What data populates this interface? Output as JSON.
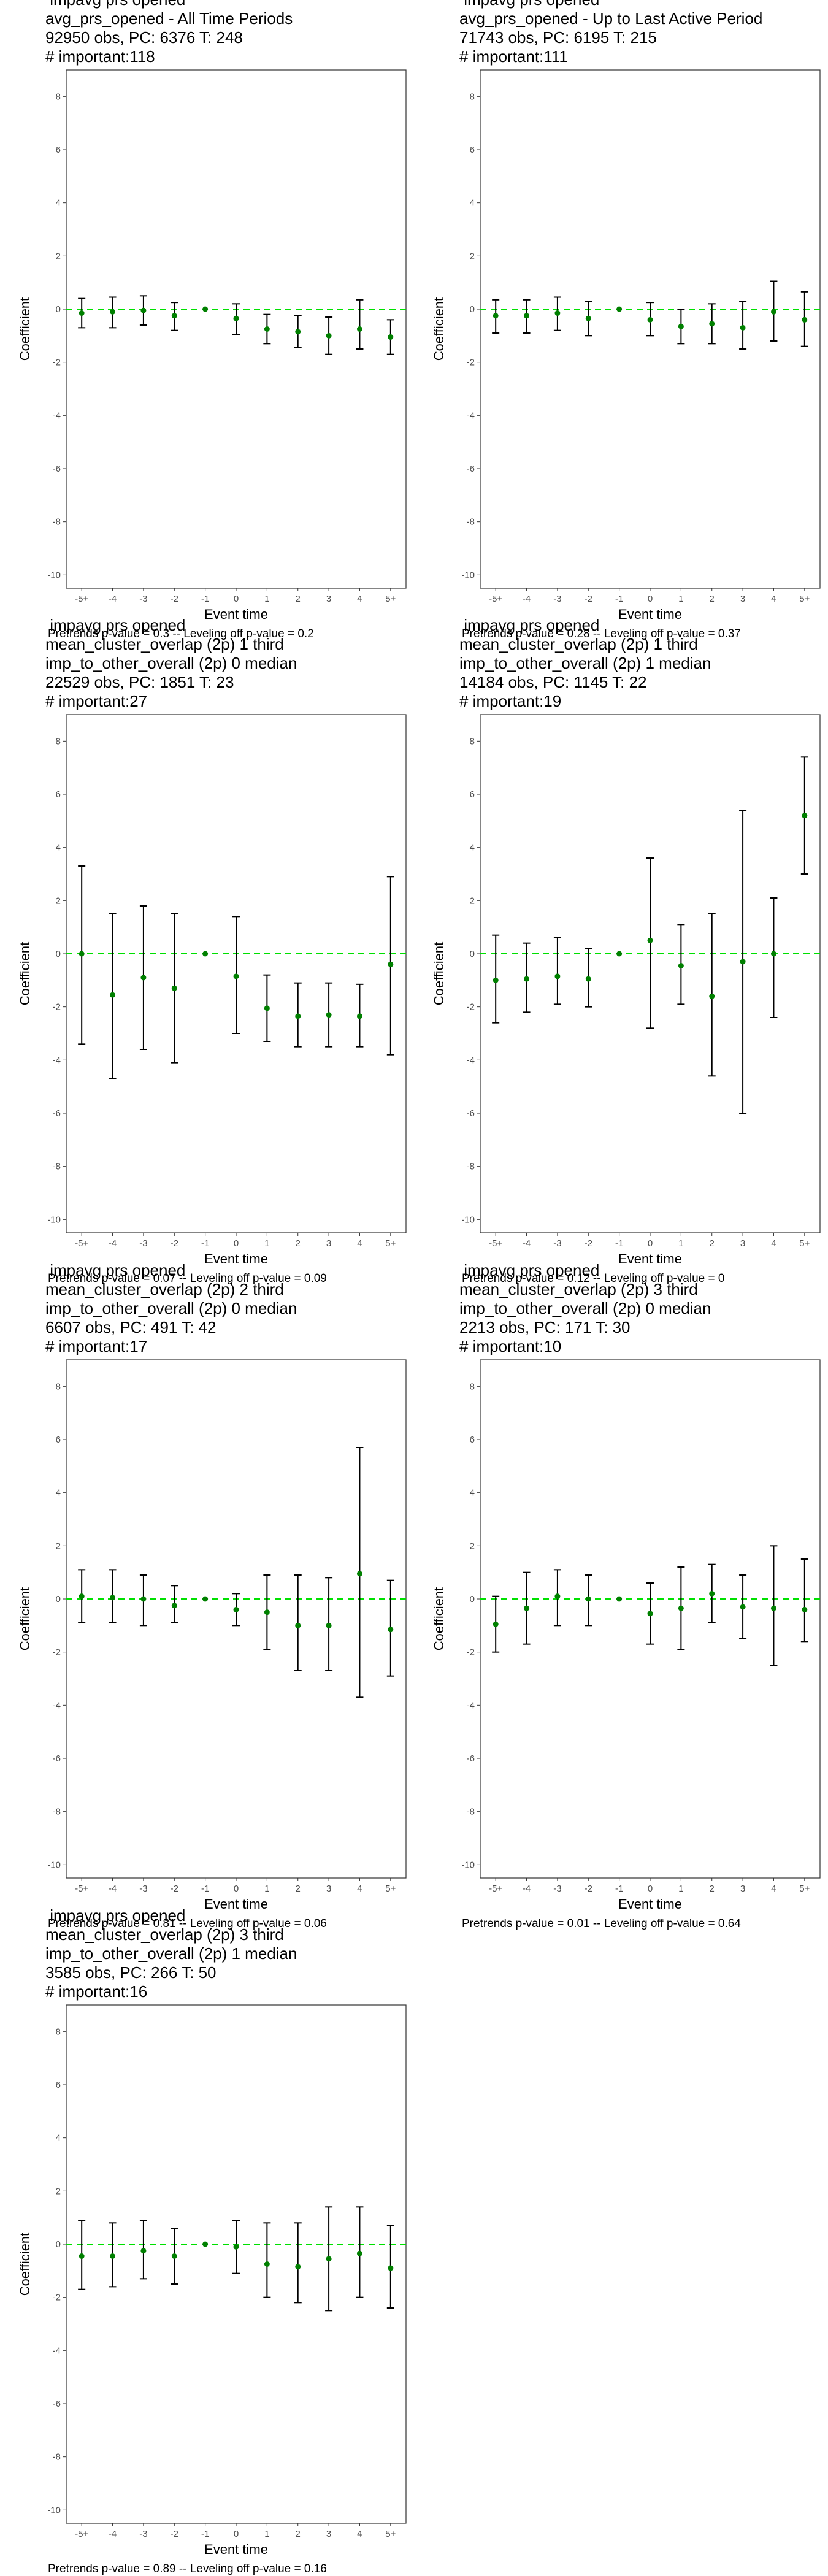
{
  "figure": {
    "title": ""
  },
  "chart_data": [
    {
      "type": "errorbar",
      "title_lines": [
        " impavg prs opened",
        "avg_prs_opened - All Time Periods",
        "92950 obs, PC: 6376 T: 248",
        "# important:118"
      ],
      "xlabel": "Event time",
      "ylabel": "Coefficient",
      "categories": [
        "-5+",
        "-4",
        "-3",
        "-2",
        "-1",
        "0",
        "1",
        "2",
        "3",
        "4",
        "5+"
      ],
      "ylim": [
        -10.5,
        9
      ],
      "yticks": [
        -10,
        -8,
        -6,
        -4,
        -2,
        0,
        2,
        4,
        6,
        8
      ],
      "reference_line": 0,
      "reference_color": "#00e000",
      "point_color": "#008000",
      "grid": false,
      "series": [
        {
          "estimate": [
            -0.15,
            -0.1,
            -0.05,
            -0.25,
            0,
            -0.35,
            -0.75,
            -0.85,
            -1.0,
            -0.75,
            -1.05
          ],
          "lower": [
            -0.7,
            -0.7,
            -0.6,
            -0.8,
            0,
            -0.95,
            -1.3,
            -1.45,
            -1.7,
            -1.5,
            -1.7
          ],
          "upper": [
            0.4,
            0.45,
            0.5,
            0.25,
            0,
            0.2,
            -0.2,
            -0.25,
            -0.3,
            0.35,
            -0.4
          ]
        }
      ],
      "footnote": "Pretrends p-value = 0.3 -- Leveling off p-value = 0.2"
    },
    {
      "type": "errorbar",
      "title_lines": [
        " impavg prs opened",
        "avg_prs_opened - Up to Last Active Period",
        "71743 obs, PC: 6195 T: 215",
        "# important:111"
      ],
      "xlabel": "Event time",
      "ylabel": "Coefficient",
      "categories": [
        "-5+",
        "-4",
        "-3",
        "-2",
        "-1",
        "0",
        "1",
        "2",
        "3",
        "4",
        "5+"
      ],
      "ylim": [
        -10.5,
        9
      ],
      "yticks": [
        -10,
        -8,
        -6,
        -4,
        -2,
        0,
        2,
        4,
        6,
        8
      ],
      "reference_line": 0,
      "reference_color": "#00e000",
      "point_color": "#008000",
      "grid": false,
      "series": [
        {
          "estimate": [
            -0.25,
            -0.25,
            -0.15,
            -0.35,
            0,
            -0.4,
            -0.65,
            -0.55,
            -0.7,
            -0.1,
            -0.4
          ],
          "lower": [
            -0.9,
            -0.9,
            -0.8,
            -1.0,
            0,
            -1.0,
            -1.3,
            -1.3,
            -1.5,
            -1.2,
            -1.4
          ],
          "upper": [
            0.35,
            0.35,
            0.45,
            0.3,
            0,
            0.25,
            0.0,
            0.2,
            0.3,
            1.05,
            0.65
          ]
        }
      ],
      "footnote": "Pretrends p-value = 0.28 -- Leveling off p-value = 0.37"
    },
    {
      "type": "errorbar",
      "title_lines": [
        " impavg prs opened",
        "mean_cluster_overlap (2p) 1 third",
        "imp_to_other_overall (2p) 0 median",
        "22529 obs, PC: 1851 T: 23",
        "# important:27"
      ],
      "xlabel": "Event time",
      "ylabel": "Coefficient",
      "categories": [
        "-5+",
        "-4",
        "-3",
        "-2",
        "-1",
        "0",
        "1",
        "2",
        "3",
        "4",
        "5+"
      ],
      "ylim": [
        -10.5,
        9
      ],
      "yticks": [
        -10,
        -8,
        -6,
        -4,
        -2,
        0,
        2,
        4,
        6,
        8
      ],
      "reference_line": 0,
      "reference_color": "#00e000",
      "point_color": "#008000",
      "grid": false,
      "series": [
        {
          "estimate": [
            0.0,
            -1.55,
            -0.9,
            -1.3,
            0,
            -0.85,
            -2.05,
            -2.35,
            -2.3,
            -2.35,
            -0.4
          ],
          "lower": [
            -3.4,
            -4.7,
            -3.6,
            -4.1,
            0,
            -3.0,
            -3.3,
            -3.5,
            -3.5,
            -3.5,
            -3.8
          ],
          "upper": [
            3.3,
            1.5,
            1.8,
            1.5,
            0,
            1.4,
            -0.8,
            -1.1,
            -1.1,
            -1.15,
            2.9
          ]
        }
      ],
      "footnote": "Pretrends p-value = 0.07 -- Leveling off p-value = 0.09"
    },
    {
      "type": "errorbar",
      "title_lines": [
        " impavg prs opened",
        "mean_cluster_overlap (2p) 1 third",
        "imp_to_other_overall (2p) 1 median",
        "14184 obs, PC: 1145 T: 22",
        "# important:19"
      ],
      "xlabel": "Event time",
      "ylabel": "Coefficient",
      "categories": [
        "-5+",
        "-4",
        "-3",
        "-2",
        "-1",
        "0",
        "1",
        "2",
        "3",
        "4",
        "5+"
      ],
      "ylim": [
        -10.5,
        9
      ],
      "yticks": [
        -10,
        -8,
        -6,
        -4,
        -2,
        0,
        2,
        4,
        6,
        8
      ],
      "reference_line": 0,
      "reference_color": "#00e000",
      "point_color": "#008000",
      "grid": false,
      "series": [
        {
          "estimate": [
            -1.0,
            -0.95,
            -0.85,
            -0.95,
            0,
            0.5,
            -0.45,
            -1.6,
            -0.3,
            0.0,
            5.2
          ],
          "lower": [
            -2.6,
            -2.2,
            -1.9,
            -2.0,
            0,
            -2.8,
            -1.9,
            -4.6,
            -6.0,
            -2.4,
            3.0
          ],
          "upper": [
            0.7,
            0.4,
            0.6,
            0.2,
            0,
            3.6,
            1.1,
            1.5,
            5.4,
            2.1,
            7.4
          ]
        }
      ],
      "footnote": "Pretrends p-value = 0.12 -- Leveling off p-value = 0"
    },
    {
      "type": "errorbar",
      "title_lines": [
        " impavg prs opened",
        "mean_cluster_overlap (2p) 2 third",
        "imp_to_other_overall (2p) 0 median",
        "6607 obs, PC: 491 T: 42",
        "# important:17"
      ],
      "xlabel": "Event time",
      "ylabel": "Coefficient",
      "categories": [
        "-5+",
        "-4",
        "-3",
        "-2",
        "-1",
        "0",
        "1",
        "2",
        "3",
        "4",
        "5+"
      ],
      "ylim": [
        -10.5,
        9
      ],
      "yticks": [
        -10,
        -8,
        -6,
        -4,
        -2,
        0,
        2,
        4,
        6,
        8
      ],
      "reference_line": 0,
      "reference_color": "#00e000",
      "point_color": "#008000",
      "grid": false,
      "series": [
        {
          "estimate": [
            0.1,
            0.05,
            0.0,
            -0.25,
            0,
            -0.4,
            -0.5,
            -1.0,
            -1.0,
            0.95,
            -1.15
          ],
          "lower": [
            -0.9,
            -0.9,
            -1.0,
            -0.9,
            0,
            -1.0,
            -1.9,
            -2.7,
            -2.7,
            -3.7,
            -2.9
          ],
          "upper": [
            1.1,
            1.1,
            0.9,
            0.5,
            0,
            0.2,
            0.9,
            0.9,
            0.8,
            5.7,
            0.7
          ]
        }
      ],
      "footnote": "Pretrends p-value = 0.81 -- Leveling off p-value = 0.06"
    },
    {
      "type": "errorbar",
      "title_lines": [
        " impavg prs opened",
        "mean_cluster_overlap (2p) 3 third",
        "imp_to_other_overall (2p) 0 median",
        "2213 obs, PC: 171 T: 30",
        "# important:10"
      ],
      "xlabel": "Event time",
      "ylabel": "Coefficient",
      "categories": [
        "-5+",
        "-4",
        "-3",
        "-2",
        "-1",
        "0",
        "1",
        "2",
        "3",
        "4",
        "5+"
      ],
      "ylim": [
        -10.5,
        9
      ],
      "yticks": [
        -10,
        -8,
        -6,
        -4,
        -2,
        0,
        2,
        4,
        6,
        8
      ],
      "reference_line": 0,
      "reference_color": "#00e000",
      "point_color": "#008000",
      "grid": false,
      "series": [
        {
          "estimate": [
            -0.95,
            -0.35,
            0.1,
            0.0,
            0,
            -0.55,
            -0.35,
            0.2,
            -0.3,
            -0.35,
            -0.4
          ],
          "lower": [
            -2.0,
            -1.7,
            -1.0,
            -1.0,
            0,
            -1.7,
            -1.9,
            -0.9,
            -1.5,
            -2.5,
            -1.6
          ],
          "upper": [
            0.1,
            1.0,
            1.1,
            0.9,
            0,
            0.6,
            1.2,
            1.3,
            0.9,
            2.0,
            1.5
          ]
        }
      ],
      "footnote": "Pretrends p-value = 0.01 -- Leveling off p-value = 0.64"
    },
    {
      "type": "errorbar",
      "title_lines": [
        " impavg prs opened",
        "mean_cluster_overlap (2p) 3 third",
        "imp_to_other_overall (2p) 1 median",
        "3585 obs, PC: 266 T: 50",
        "# important:16"
      ],
      "xlabel": "Event time",
      "ylabel": "Coefficient",
      "categories": [
        "-5+",
        "-4",
        "-3",
        "-2",
        "-1",
        "0",
        "1",
        "2",
        "3",
        "4",
        "5+"
      ],
      "ylim": [
        -10.5,
        9
      ],
      "yticks": [
        -10,
        -8,
        -6,
        -4,
        -2,
        0,
        2,
        4,
        6,
        8
      ],
      "reference_line": 0,
      "reference_color": "#00e000",
      "point_color": "#008000",
      "grid": false,
      "series": [
        {
          "estimate": [
            -0.45,
            -0.45,
            -0.25,
            -0.45,
            0,
            -0.1,
            -0.75,
            -0.85,
            -0.55,
            -0.35,
            -0.9
          ],
          "lower": [
            -1.7,
            -1.6,
            -1.3,
            -1.5,
            0,
            -1.1,
            -2.0,
            -2.2,
            -2.5,
            -2.0,
            -2.4
          ],
          "upper": [
            0.9,
            0.8,
            0.9,
            0.6,
            0,
            0.9,
            0.8,
            0.8,
            1.4,
            1.4,
            0.7
          ]
        }
      ],
      "footnote": "Pretrends p-value = 0.89 -- Leveling off p-value = 0.16"
    }
  ]
}
